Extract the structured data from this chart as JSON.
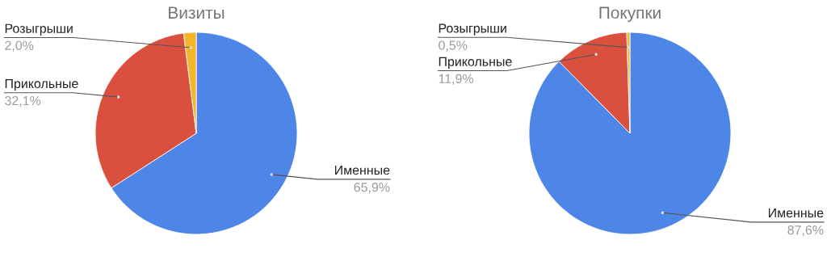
{
  "chart_data": [
    {
      "type": "pie",
      "title": "Визиты",
      "categories": [
        "Именные",
        "Прикольные",
        "Розыгрыши"
      ],
      "values": [
        65.9,
        32.1,
        2.0
      ],
      "colors": [
        "#4e86e8",
        "#d9503f",
        "#f3b52a"
      ],
      "value_labels": [
        "65,9%",
        "32,1%",
        "2,0%"
      ]
    },
    {
      "type": "pie",
      "title": "Покупки",
      "categories": [
        "Именные",
        "Прикольные",
        "Розыгрыши"
      ],
      "values": [
        87.6,
        11.9,
        0.5
      ],
      "colors": [
        "#4e86e8",
        "#d9503f",
        "#f3b52a"
      ],
      "value_labels": [
        "87,6%",
        "11,9%",
        "0,5%"
      ]
    }
  ]
}
